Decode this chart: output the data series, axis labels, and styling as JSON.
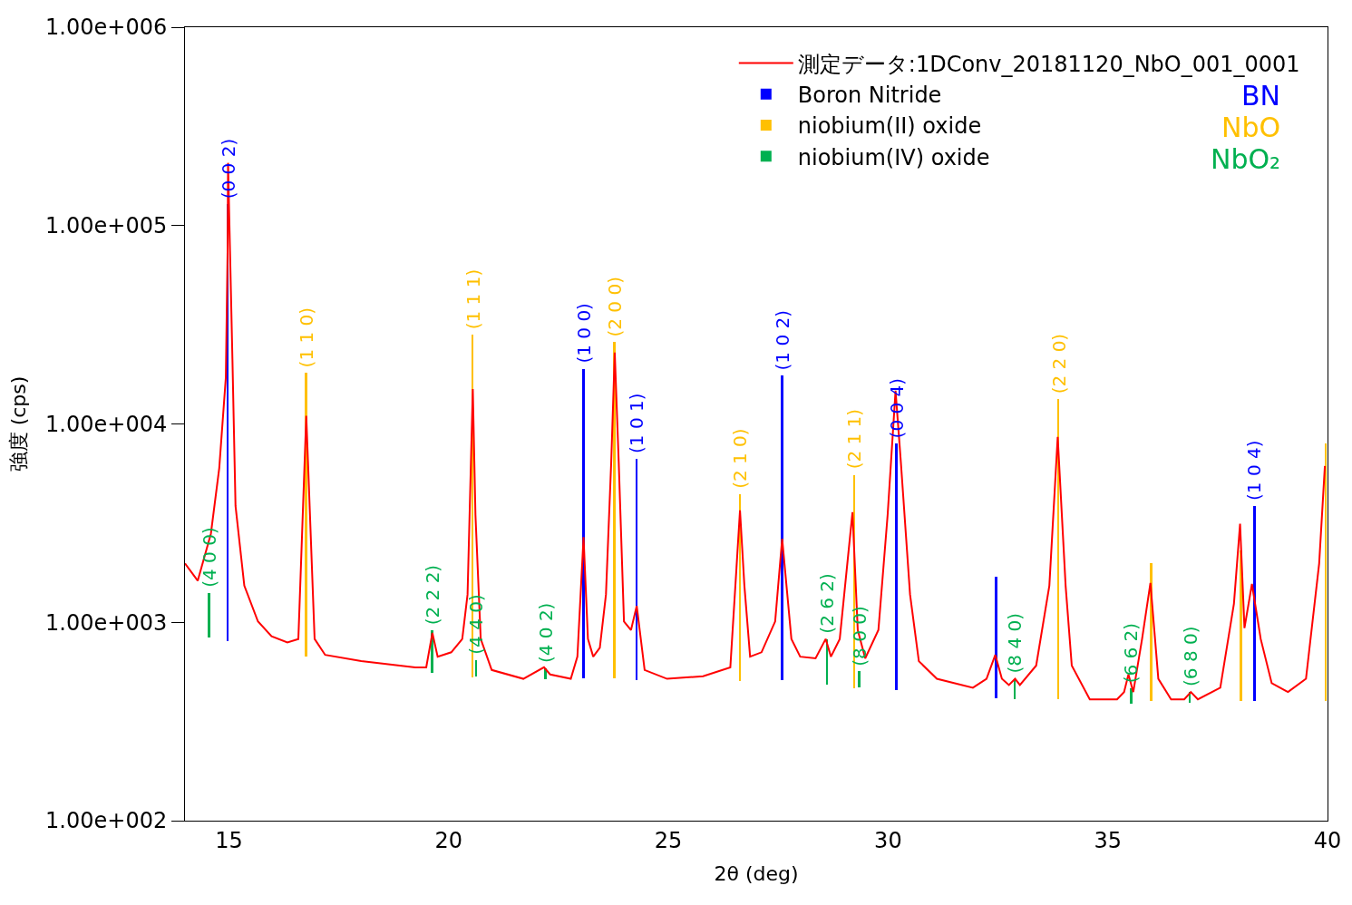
{
  "chart_data": {
    "type": "line",
    "xlabel": "2θ (deg)",
    "ylabel": "強度 (cps)",
    "log": "y",
    "legend": "top right",
    "marker": "none",
    "line_style": "solid",
    "xlim": [
      14,
      40
    ],
    "xticks": [
      15,
      20,
      25,
      30,
      35,
      40
    ],
    "ylim": [
      100,
      1000000
    ],
    "yticks": [
      {
        "value": 100,
        "label": "1.00e+002"
      },
      {
        "value": 1000,
        "label": "1.00e+003"
      },
      {
        "value": 10000,
        "label": "1.00e+004"
      },
      {
        "value": 100000,
        "label": "1.00e+005"
      },
      {
        "value": 1000000,
        "label": "1.00e+006"
      }
    ],
    "annotations": [
      "BN",
      "NbO",
      "NbO₂"
    ],
    "series": [
      {
        "name": "測定データ:1DConv_20181120_NbO_001_0001",
        "color": "#ff0000",
        "x": [
          14.0,
          14.29,
          14.59,
          14.78,
          14.93,
          14.97,
          14.98,
          15.08,
          15.15,
          15.35,
          15.66,
          15.97,
          16.33,
          16.58,
          16.76,
          16.95,
          17.19,
          18.01,
          19.24,
          19.49,
          19.63,
          19.75,
          20.06,
          20.31,
          20.43,
          20.55,
          20.61,
          20.73,
          20.98,
          21.7,
          22.17,
          22.31,
          22.78,
          22.93,
          23.07,
          23.17,
          23.29,
          23.44,
          23.58,
          23.7,
          23.78,
          23.87,
          23.99,
          24.15,
          24.28,
          24.46,
          24.97,
          25.79,
          26.41,
          26.55,
          26.63,
          26.73,
          26.86,
          27.12,
          27.43,
          27.59,
          27.8,
          28.0,
          28.35,
          28.58,
          28.7,
          28.9,
          29.19,
          29.31,
          29.48,
          29.78,
          29.99,
          30.17,
          30.29,
          30.5,
          30.7,
          31.11,
          31.93,
          32.24,
          32.44,
          32.59,
          32.75,
          32.89,
          33.0,
          33.37,
          33.67,
          33.86,
          34.04,
          34.18,
          34.59,
          35.21,
          35.37,
          35.47,
          35.58,
          35.78,
          35.97,
          36.15,
          36.44,
          36.74,
          36.89,
          37.05,
          37.56,
          37.87,
          38.01,
          38.11,
          38.28,
          38.48,
          38.73,
          39.1,
          39.51,
          39.81,
          39.94
        ],
        "values": [
          1980,
          1620,
          2800,
          6000,
          17200,
          74800,
          207000,
          21100,
          3860,
          1530,
          1010,
          850,
          791,
          824,
          11000,
          824,
          685,
          637,
          593,
          593,
          885,
          671,
          706,
          824,
          1380,
          15000,
          3480,
          824,
          575,
          519,
          593,
          546,
          519,
          671,
          2690,
          824,
          671,
          743,
          1380,
          6460,
          22900,
          6460,
          1010,
          914,
          1210,
          575,
          519,
          535,
          593,
          1880,
          3670,
          1530,
          671,
          706,
          1010,
          2640,
          824,
          671,
          658,
          824,
          671,
          824,
          3590,
          914,
          658,
          914,
          3480,
          14700,
          6460,
          1380,
          637,
          519,
          468,
          519,
          685,
          519,
          483,
          519,
          483,
          605,
          1530,
          8600,
          1530,
          605,
          409,
          409,
          445,
          546,
          445,
          824,
          1580,
          519,
          409,
          409,
          445,
          409,
          468,
          1240,
          3140,
          935,
          1560,
          824,
          493,
          445,
          519,
          1980,
          6140
        ]
      },
      {
        "name": "Boron Nitride",
        "type": "bar",
        "color": "#0000ff",
        "x": [
          14.98,
          23.07,
          24.28,
          27.59,
          30.19,
          32.46,
          38.34
        ],
        "base": [
          800,
          520,
          510,
          510,
          454,
          414,
          400
        ],
        "values": [
          127200,
          18480,
          6140,
          16990,
          7496,
          1276,
          3460
        ],
        "value_labels": [
          "(0 0 2)",
          "(1 0 0)",
          "(1 0 1)",
          "(1 0 2)",
          "(0 0 4)",
          null,
          "(1 0 4)"
        ]
      },
      {
        "name": "niobium(II) oxide",
        "type": "bar",
        "color": "#ffc000",
        "x": [
          16.76,
          20.55,
          23.78,
          26.63,
          29.23,
          33.88,
          35.99,
          38.03,
          39.96
        ],
        "base": [
          671,
          530,
          520,
          505,
          465,
          410,
          400,
          400,
          400
        ],
        "values": [
          17429,
          27570,
          25380,
          3905,
          5065,
          12890,
          1580,
          1910,
          7550
        ],
        "value_labels": [
          "(1 1 0)",
          "(1 1 1)",
          "(2 0 0)",
          "(2 1 0)",
          "(2 1 1)",
          "(2 2 0)",
          null,
          null,
          null
        ]
      },
      {
        "name": "niobium(IV) oxide",
        "type": "bar",
        "color": "#00b050",
        "x": [
          14.55,
          19.63,
          20.63,
          22.21,
          28.62,
          29.35,
          32.89,
          35.54,
          36.87
        ],
        "base": [
          842,
          557,
          535,
          519,
          483,
          468,
          409,
          389,
          393
        ],
        "values": [
          568,
          355,
          110,
          69,
          341,
          98,
          110,
          76,
          52
        ],
        "value_labels": [
          "(4 0 0)",
          "(2 2 2)",
          "(4 4 0)",
          "(4 0 2)",
          "(2 6 2)",
          "(8 0 0)",
          "(8 4 0)",
          "(6 6 2)",
          "(6 8 0)"
        ]
      }
    ]
  }
}
